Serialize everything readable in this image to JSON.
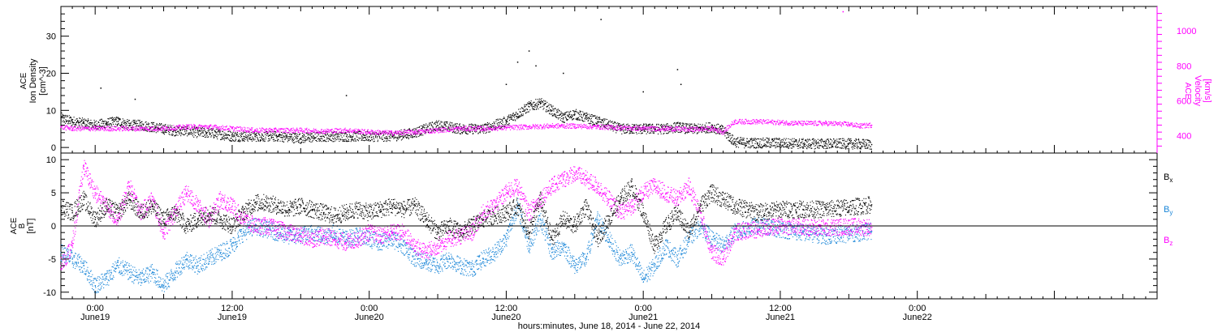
{
  "colors": {
    "black": "#000000",
    "blue": "#1a86d8",
    "magenta": "#ff00ff",
    "axis": "#000000"
  },
  "x_axis": {
    "range_hours": [
      -3,
      93
    ],
    "ticks": [
      {
        "h": 0,
        "time": "0:00",
        "day": "June19"
      },
      {
        "h": 12,
        "time": "12:00",
        "day": "June19"
      },
      {
        "h": 24,
        "time": "0:00",
        "day": "June20"
      },
      {
        "h": 36,
        "time": "12:00",
        "day": "June20"
      },
      {
        "h": 48,
        "time": "0:00",
        "day": "June21"
      },
      {
        "h": 60,
        "time": "12:00",
        "day": "June21"
      },
      {
        "h": 72,
        "time": "0:00",
        "day": "June22"
      }
    ],
    "label": "hours:minutes, June 18, 2014 - June 22, 2014"
  },
  "chart_data": [
    {
      "type": "scatter",
      "title": "",
      "xlabel": "hours:minutes, June 18, 2014 - June 22, 2014",
      "ylabel_left": [
        "ACE",
        "Ion Density",
        "[cm^-3]"
      ],
      "ylabel_right": [
        "ACE",
        "Velocity",
        "[km/s]"
      ],
      "ylim_left": [
        -1.5,
        38
      ],
      "ylim_right": [
        300,
        1140
      ],
      "yticks_left": [
        "0",
        "10",
        "20",
        "30"
      ],
      "yticks_right": [
        "400",
        "600",
        "800",
        "1000"
      ],
      "series": [
        {
          "axis": "left",
          "color": "#000000",
          "x": [
            -3,
            -2,
            -1,
            0,
            1,
            2,
            3,
            4,
            5,
            6,
            7,
            8,
            9,
            10,
            11,
            12,
            13,
            14,
            16,
            18,
            20,
            22,
            24,
            26,
            28,
            30,
            32,
            34,
            36,
            37,
            38,
            39,
            40,
            41,
            42,
            43,
            44,
            45,
            46,
            47,
            48,
            49,
            50,
            51,
            52,
            53,
            54,
            55,
            56,
            57,
            58,
            60,
            62,
            64,
            66,
            67,
            68
          ],
          "y": [
            8,
            7,
            6.5,
            6,
            6.5,
            7,
            6,
            6,
            5.5,
            5,
            4.5,
            4.5,
            4,
            4,
            3.5,
            3,
            3,
            3,
            3,
            2.5,
            3,
            3,
            3,
            3,
            4,
            6,
            5,
            5,
            7,
            9,
            11,
            12,
            10,
            8,
            9,
            8,
            7,
            6,
            5,
            5,
            5,
            5,
            5,
            5.5,
            5,
            5,
            5.5,
            4.5,
            1.5,
            1.2,
            1.2,
            1.2,
            1,
            1,
            1,
            0.9,
            0.8
          ]
        },
        {
          "axis": "right",
          "color": "#ff00ff",
          "x": [
            -3,
            -2,
            0,
            2,
            4,
            6,
            8,
            10,
            12,
            14,
            16,
            18,
            20,
            22,
            24,
            26,
            28,
            30,
            32,
            34,
            36,
            38,
            40,
            42,
            44,
            46,
            48,
            50,
            52,
            54,
            55,
            56,
            58,
            60,
            62,
            64,
            66,
            67,
            68
          ],
          "y": [
            450,
            440,
            440,
            440,
            440,
            440,
            450,
            450,
            440,
            430,
            430,
            430,
            425,
            430,
            420,
            415,
            420,
            430,
            440,
            440,
            445,
            450,
            455,
            455,
            450,
            445,
            440,
            440,
            435,
            440,
            420,
            480,
            480,
            475,
            470,
            470,
            465,
            455,
            460
          ]
        }
      ],
      "outliers_left": [
        [
          0.5,
          16
        ],
        [
          3.5,
          13
        ],
        [
          22,
          14
        ],
        [
          36,
          17
        ],
        [
          37,
          23
        ],
        [
          38,
          26
        ],
        [
          38.6,
          22
        ],
        [
          41,
          20
        ],
        [
          44,
          38
        ],
        [
          44.3,
          34.5
        ],
        [
          51,
          21
        ],
        [
          51.3,
          17
        ],
        [
          48,
          15
        ]
      ],
      "outliers_right": [
        [
          65.5,
          1110
        ]
      ]
    },
    {
      "type": "scatter",
      "title": "",
      "ylabel": [
        "ACE",
        "B",
        "[nT]"
      ],
      "ylim": [
        -11,
        11
      ],
      "yticks": [
        "-10",
        "-5",
        "0",
        "5",
        "10"
      ],
      "legend_position": "right",
      "series": [
        {
          "name": "Bx",
          "color": "#000000",
          "x": [
            -3,
            -2,
            -1,
            0,
            1,
            2,
            3,
            4,
            5,
            6,
            7,
            8,
            9,
            10,
            11,
            12,
            13,
            14,
            15,
            16,
            17,
            18,
            19,
            20,
            21,
            22,
            23,
            24,
            25,
            26,
            27,
            28,
            29,
            30,
            31,
            32,
            33,
            34,
            35,
            36,
            37,
            38,
            39,
            40,
            41,
            42,
            43,
            44,
            45,
            46,
            47,
            48,
            49,
            50,
            51,
            52,
            53,
            54,
            55,
            56,
            58,
            60,
            62,
            64,
            66,
            68
          ],
          "y": [
            3,
            2,
            4,
            1,
            3,
            2,
            4,
            2,
            3,
            1,
            2,
            0,
            1,
            2,
            1,
            0,
            2,
            3.5,
            3.5,
            3,
            2.5,
            3,
            2.5,
            2,
            1.5,
            2,
            2.5,
            2,
            2.5,
            3,
            2.5,
            3,
            1,
            -1,
            0,
            -1,
            0,
            1,
            1.5,
            2,
            3,
            -1,
            4,
            -2,
            1,
            0,
            3,
            -2,
            1,
            4,
            6,
            2,
            -3,
            0,
            2,
            -1,
            3,
            5,
            4,
            3,
            2,
            2.5,
            2.5,
            2.5,
            2.8,
            3.2
          ]
        },
        {
          "name": "By",
          "color": "#1a86d8",
          "x": [
            -3,
            -2,
            -1,
            0,
            1,
            2,
            3,
            4,
            5,
            6,
            7,
            8,
            9,
            10,
            11,
            12,
            13,
            14,
            15,
            16,
            17,
            18,
            19,
            20,
            21,
            22,
            23,
            24,
            25,
            26,
            27,
            28,
            29,
            30,
            31,
            32,
            33,
            34,
            35,
            36,
            37,
            38,
            39,
            40,
            41,
            42,
            43,
            44,
            45,
            46,
            47,
            48,
            49,
            50,
            51,
            52,
            53,
            54,
            55,
            56,
            58,
            60,
            62,
            64,
            66,
            68
          ],
          "y": [
            -4,
            -5,
            -6,
            -9,
            -8,
            -6,
            -7,
            -8,
            -7,
            -9,
            -7,
            -5,
            -6,
            -5,
            -4,
            -3,
            -1,
            0,
            -0.5,
            -1,
            -1.5,
            -1.5,
            -1,
            -1.5,
            -1,
            -2,
            -1.5,
            -2,
            -2.5,
            -2,
            -3,
            -5,
            -5.5,
            -6,
            -5,
            -6,
            -6.5,
            -5,
            -4,
            -2,
            3,
            -3,
            1,
            -4,
            -3,
            -6,
            -5,
            1,
            -2,
            -5,
            -4,
            -8,
            -6,
            -3,
            -5,
            -2,
            0,
            -2,
            -3,
            -1,
            0,
            -0.5,
            -1,
            -1.5,
            -1.2,
            -0.8
          ]
        },
        {
          "name": "Bz",
          "color": "#ff00ff",
          "x": [
            -3,
            -2,
            -1,
            0,
            1,
            2,
            3,
            4,
            5,
            6,
            7,
            8,
            9,
            10,
            11,
            12,
            13,
            14,
            15,
            16,
            17,
            18,
            19,
            20,
            21,
            22,
            23,
            24,
            25,
            26,
            27,
            28,
            29,
            30,
            31,
            32,
            33,
            34,
            35,
            36,
            37,
            38,
            39,
            40,
            41,
            42,
            43,
            44,
            45,
            46,
            47,
            48,
            49,
            50,
            51,
            52,
            53,
            54,
            55,
            56,
            58,
            60,
            62,
            64,
            66,
            68
          ],
          "y": [
            -6,
            -3,
            9,
            5,
            3,
            1,
            6,
            2,
            4,
            -1,
            2,
            5,
            3,
            1,
            4,
            3,
            1,
            0,
            0,
            -0.5,
            -1,
            -1.5,
            -2,
            -1.5,
            -2,
            -2.5,
            -2,
            -1,
            -1.5,
            -1,
            -1,
            -3,
            -4,
            -3,
            -2,
            -1.5,
            -1,
            2,
            3,
            5,
            6,
            2,
            4,
            6,
            7,
            8,
            7,
            6,
            4,
            2,
            3,
            5,
            6,
            5,
            4,
            6,
            2,
            -4,
            -5,
            -1,
            -0.5,
            0,
            -0.2,
            -0.3,
            -0.1,
            -0.2
          ]
        }
      ],
      "legend": [
        {
          "name": "B",
          "sub": "x",
          "color": "#000000"
        },
        {
          "name": "B",
          "sub": "y",
          "color": "#1a86d8"
        },
        {
          "name": "B",
          "sub": "z",
          "color": "#ff00ff"
        }
      ]
    }
  ]
}
